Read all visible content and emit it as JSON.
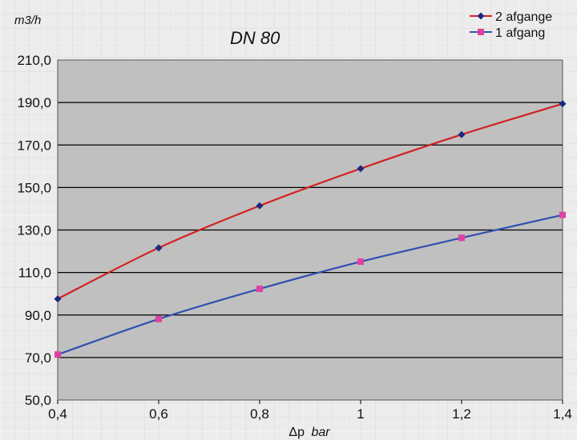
{
  "chart_data": {
    "type": "line",
    "title": "DN 80",
    "ylabel": "m3/h",
    "xlabel_symbol": "Δp",
    "xlabel_unit": "bar",
    "x": [
      0.4,
      0.6,
      0.8,
      1.0,
      1.2,
      1.4
    ],
    "x_tick_labels": [
      "0,4",
      "0,6",
      "0,8",
      "1",
      "1,2",
      "1,4"
    ],
    "ylim": [
      50,
      210
    ],
    "y_ticks": [
      50,
      70,
      90,
      110,
      130,
      150,
      170,
      190,
      210
    ],
    "y_tick_labels": [
      "50,0",
      "70,0",
      "90,0",
      "110,0",
      "130,0",
      "150,0",
      "170,0",
      "190,0",
      "210,0"
    ],
    "grid": "horizontal",
    "legend_position": "top-right",
    "plot_background": "#c0c0c0",
    "series": [
      {
        "name": "2 afgange",
        "line_color": "#d42020",
        "marker_color": "#1a2a80",
        "marker": "diamond",
        "values": [
          97.6,
          121.6,
          141.4,
          158.9,
          174.9,
          189.4
        ]
      },
      {
        "name": "1 afgang",
        "line_color": "#3050b0",
        "marker_color": "#e040a0",
        "marker": "square",
        "values": [
          71.4,
          88.1,
          102.3,
          115.1,
          126.3,
          137.1
        ]
      }
    ]
  }
}
